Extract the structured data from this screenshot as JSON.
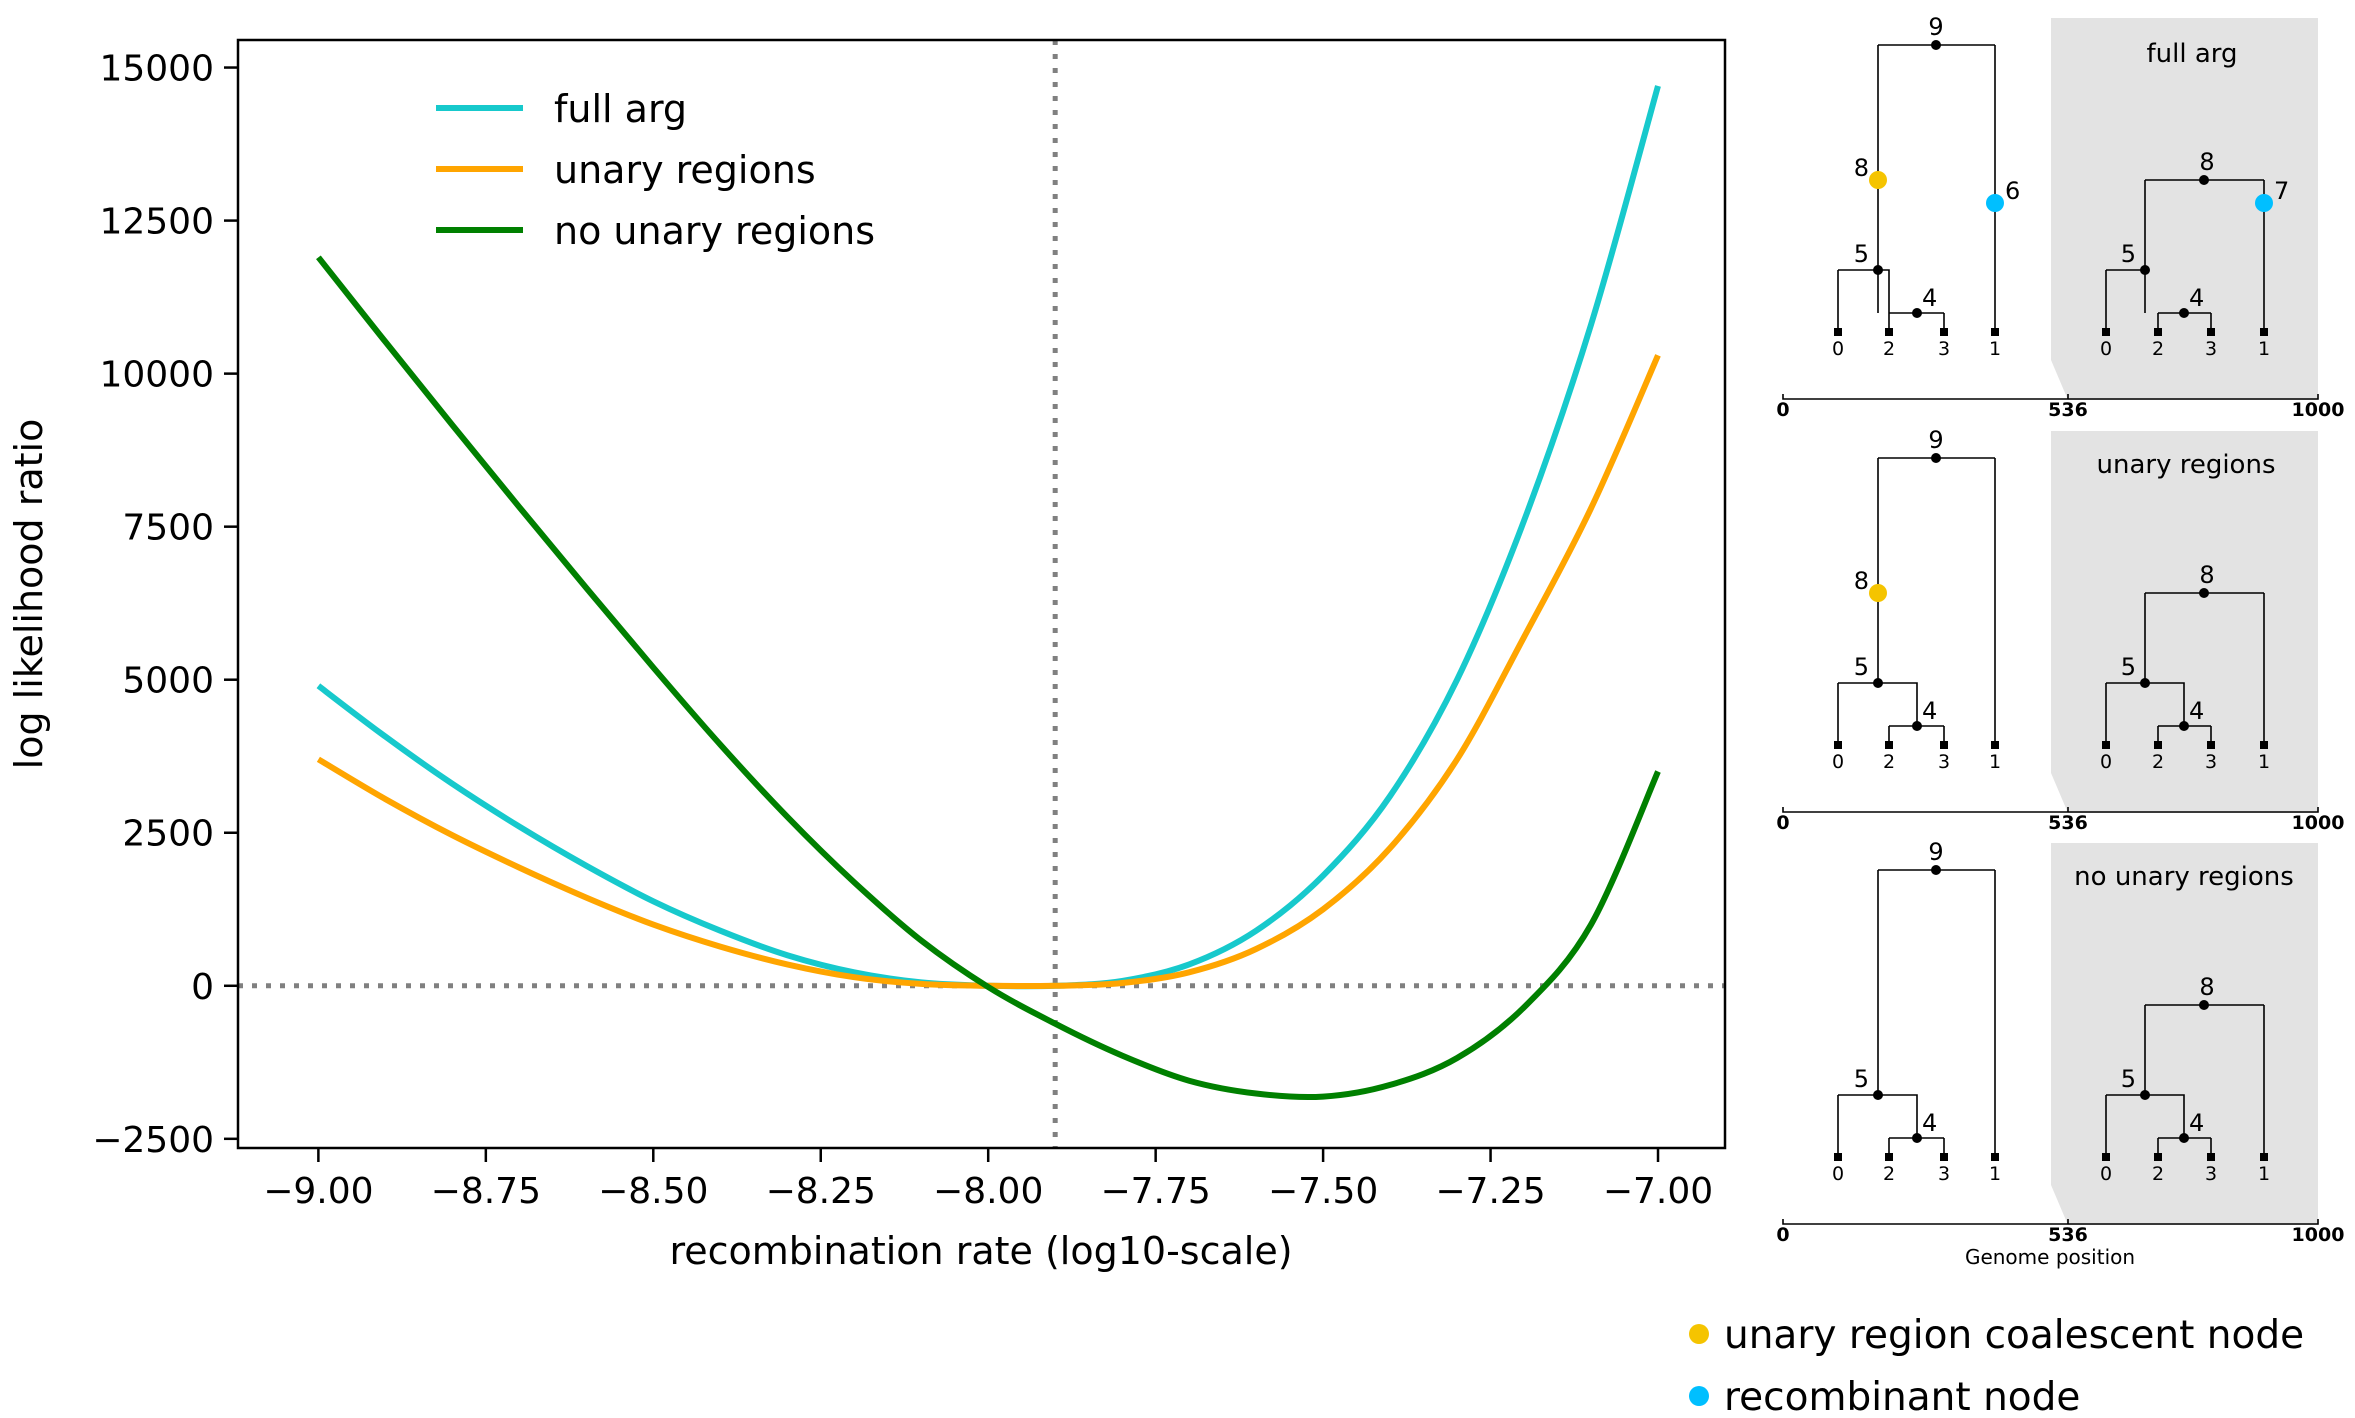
{
  "chart_data": [
    {
      "type": "line",
      "xlabel": "recombination rate (log10-scale)",
      "ylabel": "log likelihood ratio",
      "xlim": [
        -9.12,
        -6.9
      ],
      "ylim": [
        -2650,
        15450
      ],
      "x_ticks": [
        -9.0,
        -8.75,
        -8.5,
        -8.25,
        -8.0,
        -7.75,
        -7.5,
        -7.25,
        -7.0
      ],
      "x_tick_labels": [
        "−9.00",
        "−8.75",
        "−8.50",
        "−8.25",
        "−8.00",
        "−7.75",
        "−7.50",
        "−7.25",
        "−7.00"
      ],
      "y_ticks": [
        -2500,
        0,
        2500,
        5000,
        7500,
        10000,
        12500,
        15000
      ],
      "y_tick_labels": [
        "−2500",
        "0",
        "2500",
        "5000",
        "7500",
        "10000",
        "12500",
        "15000"
      ],
      "reference_lines": {
        "x": -7.9,
        "y": 0,
        "style": "dotted",
        "color": "#808080"
      },
      "legend_position": "upper-left",
      "grid": false,
      "x": [
        -9.0,
        -8.9,
        -8.8,
        -8.7,
        -8.6,
        -8.5,
        -8.4,
        -8.3,
        -8.2,
        -8.1,
        -8.0,
        -7.9,
        -7.8,
        -7.7,
        -7.6,
        -7.5,
        -7.4,
        -7.3,
        -7.2,
        -7.1,
        -7.0
      ],
      "series": [
        {
          "name": "full arg",
          "color": "#17c9cc",
          "values": [
            4900,
            4070,
            3300,
            2600,
            1960,
            1380,
            900,
            500,
            220,
            55,
            0,
            0,
            80,
            350,
            900,
            1800,
            3100,
            5000,
            7600,
            10800,
            14700
          ]
        },
        {
          "name": "unary regions",
          "color": "#ffa500",
          "values": [
            3700,
            3050,
            2460,
            1930,
            1440,
            1000,
            640,
            350,
            140,
            30,
            0,
            0,
            45,
            220,
            600,
            1250,
            2250,
            3700,
            5700,
            7800,
            10300
          ]
        },
        {
          "name": "no unary regions",
          "color": "#008000",
          "values": [
            11900,
            10520,
            9160,
            7820,
            6500,
            5200,
            3940,
            2760,
            1690,
            740,
            -20,
            -620,
            -1140,
            -1550,
            -1760,
            -1810,
            -1620,
            -1180,
            -350,
            1000,
            3500
          ]
        }
      ]
    },
    {
      "type": "diagram",
      "panels": [
        {
          "title": "full arg",
          "left_tree": {
            "labels": {
              "root": "9",
              "n8": "8",
              "n6": "6",
              "n5": "5",
              "n4": "4"
            },
            "leaves": [
              "0",
              "2",
              "3",
              "1"
            ]
          },
          "right_tree": {
            "labels": {
              "root": "8",
              "n7": "7",
              "n5": "5",
              "n4": "4"
            },
            "leaves": [
              "0",
              "2",
              "3",
              "1"
            ]
          },
          "axis": {
            "start": "0",
            "mid": "536",
            "end": "1000"
          }
        },
        {
          "title": "unary regions",
          "left_tree": {
            "labels": {
              "root": "9",
              "n8": "8",
              "n5": "5",
              "n4": "4"
            },
            "leaves": [
              "0",
              "2",
              "3",
              "1"
            ]
          },
          "right_tree": {
            "labels": {
              "root": "8",
              "n5": "5",
              "n4": "4"
            },
            "leaves": [
              "0",
              "2",
              "3",
              "1"
            ]
          },
          "axis": {
            "start": "0",
            "mid": "536",
            "end": "1000"
          }
        },
        {
          "title": "no unary regions",
          "left_tree": {
            "labels": {
              "root": "9",
              "n5": "5",
              "n4": "4"
            },
            "leaves": [
              "0",
              "2",
              "3",
              "1"
            ]
          },
          "right_tree": {
            "labels": {
              "root": "8",
              "n5": "5",
              "n4": "4"
            },
            "leaves": [
              "0",
              "2",
              "3",
              "1"
            ]
          },
          "axis": {
            "start": "0",
            "mid": "536",
            "end": "1000"
          },
          "axis_title": "Genome position"
        }
      ],
      "legend": [
        {
          "label": "unary region coalescent node",
          "color": "#f5c400"
        },
        {
          "label": "recombinant node",
          "color": "#00bfff"
        }
      ]
    }
  ]
}
